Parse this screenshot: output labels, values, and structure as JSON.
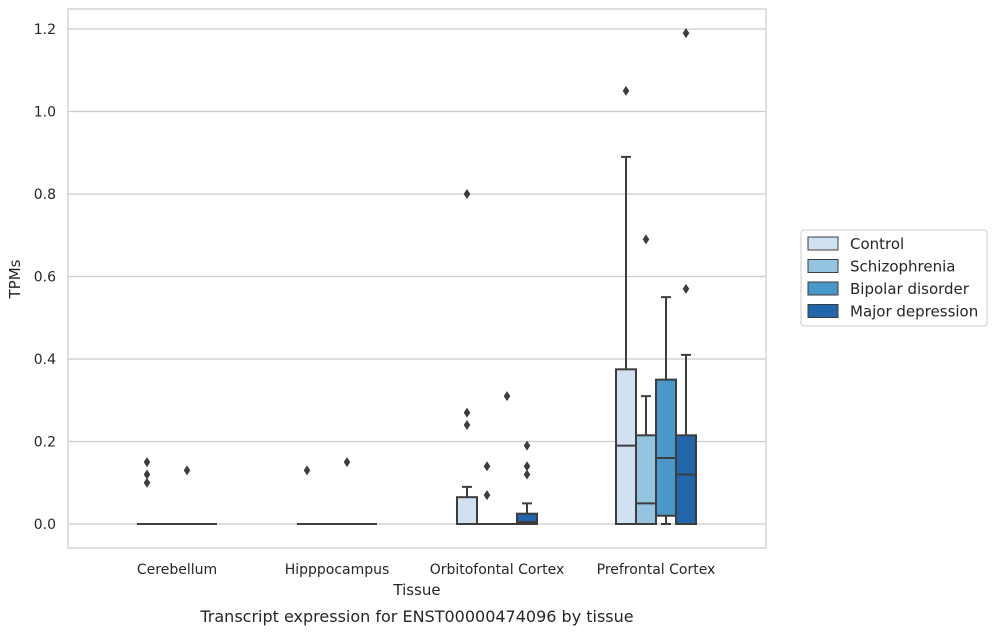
{
  "caption": "Transcript expression for ENST00000474096 by tissue",
  "chart_data": {
    "type": "box",
    "title": "",
    "xlabel": "Tissue",
    "ylabel": "TPMs",
    "ylim": [
      -0.058,
      1.25
    ],
    "yticks": [
      0.0,
      0.2,
      0.4,
      0.6,
      0.8,
      1.0,
      1.2
    ],
    "ytick_labels": [
      "0.0",
      "0.2",
      "0.4",
      "0.6",
      "0.8",
      "1.0",
      "1.2"
    ],
    "grid": "horizontal",
    "legend_position": "right",
    "categories": [
      "Cerebellum",
      "Hipppocampus",
      "Orbitofontal Cortex",
      "Prefrontal Cortex"
    ],
    "series": [
      {
        "name": "Control",
        "color": "#d0e1f2",
        "boxes": [
          {
            "q1": 0,
            "median": 0,
            "q3": 0,
            "whisker_low": 0,
            "whisker_high": 0,
            "outliers": [
              0.15,
              0.12,
              0.1
            ]
          },
          {
            "q1": 0,
            "median": 0,
            "q3": 0,
            "whisker_low": 0,
            "whisker_high": 0,
            "outliers": [
              0.13
            ]
          },
          {
            "q1": 0,
            "median": 0,
            "q3": 0.065,
            "whisker_low": 0,
            "whisker_high": 0.09,
            "outliers": [
              0.8,
              0.27,
              0.24
            ]
          },
          {
            "q1": 0,
            "median": 0.19,
            "q3": 0.375,
            "whisker_low": 0,
            "whisker_high": 0.89,
            "outliers": [
              1.05
            ]
          }
        ]
      },
      {
        "name": "Schizophrenia",
        "color": "#94c4df",
        "boxes": [
          {
            "q1": 0,
            "median": 0,
            "q3": 0,
            "whisker_low": 0,
            "whisker_high": 0,
            "outliers": []
          },
          {
            "q1": 0,
            "median": 0,
            "q3": 0,
            "whisker_low": 0,
            "whisker_high": 0,
            "outliers": []
          },
          {
            "q1": 0,
            "median": 0,
            "q3": 0,
            "whisker_low": 0,
            "whisker_high": 0,
            "outliers": [
              0.14,
              0.07
            ]
          },
          {
            "q1": 0,
            "median": 0.05,
            "q3": 0.215,
            "whisker_low": 0,
            "whisker_high": 0.31,
            "outliers": [
              0.69
            ]
          }
        ]
      },
      {
        "name": "Bipolar disorder",
        "color": "#4a98c9",
        "boxes": [
          {
            "q1": 0,
            "median": 0,
            "q3": 0,
            "whisker_low": 0,
            "whisker_high": 0,
            "outliers": [
              0.13
            ]
          },
          {
            "q1": 0,
            "median": 0,
            "q3": 0,
            "whisker_low": 0,
            "whisker_high": 0,
            "outliers": [
              0.15
            ]
          },
          {
            "q1": 0,
            "median": 0,
            "q3": 0,
            "whisker_low": 0,
            "whisker_high": 0,
            "outliers": [
              0.31
            ]
          },
          {
            "q1": 0.02,
            "median": 0.16,
            "q3": 0.35,
            "whisker_low": 0,
            "whisker_high": 0.55,
            "outliers": []
          }
        ]
      },
      {
        "name": "Major depression",
        "color": "#2266ac",
        "boxes": [
          {
            "q1": 0,
            "median": 0,
            "q3": 0,
            "whisker_low": 0,
            "whisker_high": 0,
            "outliers": []
          },
          {
            "q1": 0,
            "median": 0,
            "q3": 0,
            "whisker_low": 0,
            "whisker_high": 0,
            "outliers": []
          },
          {
            "q1": 0,
            "median": 0.005,
            "q3": 0.025,
            "whisker_low": 0,
            "whisker_high": 0.05,
            "outliers": [
              0.19,
              0.14,
              0.12
            ]
          },
          {
            "q1": 0,
            "median": 0.12,
            "q3": 0.215,
            "whisker_low": 0,
            "whisker_high": 0.41,
            "outliers": [
              1.19,
              0.57
            ]
          }
        ]
      }
    ]
  }
}
